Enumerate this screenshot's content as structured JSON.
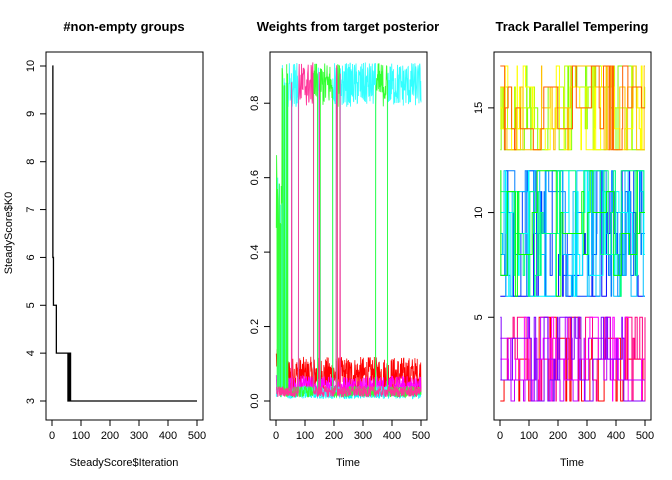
{
  "chart_data": [
    {
      "type": "line",
      "title": "#non-empty groups",
      "xlabel": "SteadyScore$Iteration",
      "ylabel": "SteadyScore$K0",
      "xlim": [
        0,
        500
      ],
      "ylim": [
        3,
        10
      ],
      "x_ticks": [
        "0",
        "100",
        "200",
        "300",
        "400",
        "500"
      ],
      "y_ticks": [
        "3",
        "4",
        "5",
        "6",
        "7",
        "8",
        "9",
        "10"
      ],
      "series": [
        {
          "color": "#000000",
          "step": true,
          "x": [
            1,
            3,
            5,
            8,
            15,
            20,
            55,
            57,
            60,
            62,
            64,
            66,
            68,
            500
          ],
          "y": [
            10,
            6,
            5,
            5,
            4,
            4,
            3,
            4,
            3,
            4,
            3,
            3,
            3,
            3
          ]
        }
      ]
    },
    {
      "type": "line",
      "title": "Weights from target posterior",
      "xlabel": "Time",
      "ylabel": "",
      "xlim": [
        0,
        500
      ],
      "ylim": [
        0,
        0.9
      ],
      "x_ticks": [
        "0",
        "100",
        "200",
        "300",
        "400",
        "500"
      ],
      "y_ticks": [
        "0.0",
        "0.2",
        "0.4",
        "0.6",
        "0.8"
      ],
      "description_series": [
        {
          "color": "#33ffff",
          "level": "high",
          "typical": 0.85,
          "range": [
            0.0,
            0.94
          ]
        },
        {
          "color": "#33ff33",
          "level": "mixed",
          "typical": 0.85,
          "range": [
            0.0,
            0.94
          ]
        },
        {
          "color": "#ff3399",
          "level": "spikes",
          "typical": 0.85,
          "range": [
            0.0,
            0.94
          ]
        },
        {
          "color": "#ff0000",
          "level": "low",
          "typical": 0.07,
          "range": [
            0.0,
            0.14
          ]
        },
        {
          "color": "#ff00ff",
          "level": "low",
          "typical": 0.04,
          "range": [
            0.0,
            0.1
          ]
        },
        {
          "color": "#00ffff",
          "level": "low",
          "typical": 0.02,
          "range": [
            0.0,
            0.06
          ]
        }
      ]
    },
    {
      "type": "line",
      "title": "Track Parallel Tempering",
      "xlabel": "Time",
      "ylabel": "",
      "xlim": [
        0,
        500
      ],
      "ylim": [
        1,
        17
      ],
      "x_ticks": [
        "0",
        "100",
        "200",
        "300",
        "400",
        "500"
      ],
      "y_ticks": [
        "5",
        "10",
        "15"
      ],
      "chain_colors": [
        "#ff0000",
        "#ff0080",
        "#ff00ff",
        "#c000ff",
        "#8000ff",
        "#0000ff",
        "#0040ff",
        "#0080ff",
        "#00c0ff",
        "#00ffff",
        "#00ff80",
        "#00ff00",
        "#80ff00",
        "#c0ff00",
        "#ffff00",
        "#ffc000",
        "#ff6000"
      ]
    }
  ]
}
